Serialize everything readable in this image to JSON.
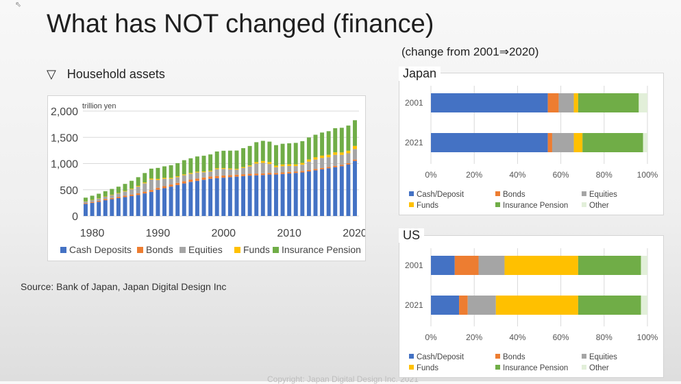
{
  "slide": {
    "title": "What has NOT changed (finance)",
    "subtitle": "(change from 2001⇒2020)",
    "bullet_icon": "▽",
    "bullet_text": "Household assets",
    "source": "Source: Bank of Japan, Japan Digital Design Inc",
    "footer": "Copyright: Japan Digital Design Inc. 2021"
  },
  "colors": {
    "Cash Deposits": "#4472c4",
    "Bonds": "#ed7d31",
    "Equities": "#a5a5a5",
    "Funds": "#ffc000",
    "Insurance Pension": "#70ad47",
    "Other": "#e2efd9"
  },
  "chart_data": [
    {
      "type": "bar",
      "stacked": true,
      "unit_label": "trillion yen",
      "x": [
        1979,
        1980,
        1981,
        1982,
        1983,
        1984,
        1985,
        1986,
        1987,
        1988,
        1989,
        1990,
        1991,
        1992,
        1993,
        1994,
        1995,
        1996,
        1997,
        1998,
        1999,
        2000,
        2001,
        2002,
        2003,
        2004,
        2005,
        2006,
        2007,
        2008,
        2009,
        2010,
        2011,
        2012,
        2013,
        2014,
        2015,
        2016,
        2017,
        2018,
        2019,
        2020
      ],
      "x_ticks": [
        "1980",
        "1990",
        "2000",
        "2010",
        "2020"
      ],
      "y_ticks": [
        "0",
        "500",
        "1,000",
        "1,500",
        "2,000"
      ],
      "ylim": [
        0,
        2000
      ],
      "grid": true,
      "legend_position": "bottom",
      "series": [
        {
          "name": "Cash Deposits",
          "values": [
            230,
            250,
            270,
            300,
            320,
            340,
            360,
            380,
            400,
            430,
            460,
            500,
            530,
            560,
            590,
            620,
            650,
            670,
            690,
            710,
            720,
            730,
            740,
            750,
            760,
            770,
            775,
            780,
            790,
            790,
            800,
            810,
            820,
            830,
            850,
            870,
            890,
            910,
            930,
            950,
            980,
            1050
          ]
        },
        {
          "name": "Bonds",
          "values": [
            15,
            17,
            19,
            21,
            23,
            25,
            27,
            29,
            31,
            33,
            35,
            37,
            39,
            40,
            41,
            42,
            43,
            44,
            44,
            44,
            43,
            42,
            40,
            38,
            36,
            35,
            34,
            33,
            32,
            31,
            30,
            29,
            28,
            28,
            27,
            27,
            26,
            26,
            26,
            26,
            26,
            26
          ]
        },
        {
          "name": "Equities",
          "values": [
            30,
            35,
            40,
            45,
            55,
            65,
            80,
            100,
            130,
            160,
            200,
            150,
            140,
            110,
            110,
            115,
            110,
            115,
            100,
            95,
            130,
            125,
            110,
            95,
            120,
            140,
            190,
            200,
            170,
            110,
            120,
            115,
            105,
            120,
            160,
            180,
            190,
            185,
            210,
            190,
            190,
            200
          ]
        },
        {
          "name": "Funds",
          "values": [
            5,
            5,
            6,
            7,
            8,
            9,
            10,
            12,
            14,
            16,
            18,
            20,
            18,
            17,
            17,
            17,
            17,
            16,
            15,
            15,
            17,
            17,
            16,
            15,
            17,
            20,
            28,
            35,
            36,
            30,
            32,
            32,
            31,
            34,
            40,
            42,
            45,
            46,
            48,
            46,
            48,
            60
          ]
        },
        {
          "name": "Insurance Pension",
          "values": [
            70,
            80,
            90,
            100,
            110,
            120,
            135,
            150,
            165,
            180,
            190,
            210,
            220,
            240,
            250,
            270,
            280,
            290,
            300,
            310,
            320,
            330,
            340,
            350,
            360,
            370,
            380,
            385,
            390,
            390,
            395,
            400,
            410,
            415,
            420,
            430,
            440,
            450,
            460,
            470,
            480,
            490
          ]
        }
      ]
    },
    {
      "type": "bar",
      "orientation": "horizontal",
      "stacked_percent": true,
      "panel_label": "Japan",
      "categories": [
        "2001",
        "2021"
      ],
      "x_ticks": [
        "0%",
        "20%",
        "40%",
        "60%",
        "80%",
        "100%"
      ],
      "xlim": [
        0,
        100
      ],
      "grid": true,
      "legend_position": "bottom",
      "series": [
        {
          "name": "Cash/Deposit",
          "values": [
            54,
            54
          ]
        },
        {
          "name": "Bonds",
          "values": [
            5,
            2
          ]
        },
        {
          "name": "Equities",
          "values": [
            7,
            10
          ]
        },
        {
          "name": "Funds",
          "values": [
            2,
            4
          ]
        },
        {
          "name": "Insurance Pension",
          "values": [
            28,
            28
          ]
        },
        {
          "name": "Other",
          "values": [
            4,
            2
          ]
        }
      ]
    },
    {
      "type": "bar",
      "orientation": "horizontal",
      "stacked_percent": true,
      "panel_label": "US",
      "categories": [
        "2001",
        "2021"
      ],
      "x_ticks": [
        "0%",
        "20%",
        "40%",
        "60%",
        "80%",
        "100%"
      ],
      "xlim": [
        0,
        100
      ],
      "grid": true,
      "legend_position": "bottom",
      "series": [
        {
          "name": "Cash/Deposit",
          "values": [
            11,
            13
          ]
        },
        {
          "name": "Bonds",
          "values": [
            11,
            4
          ]
        },
        {
          "name": "Equities",
          "values": [
            12,
            13
          ]
        },
        {
          "name": "Funds",
          "values": [
            34,
            38
          ]
        },
        {
          "name": "Insurance Pension",
          "values": [
            29,
            29
          ]
        },
        {
          "name": "Other",
          "values": [
            3,
            3
          ]
        }
      ]
    }
  ]
}
